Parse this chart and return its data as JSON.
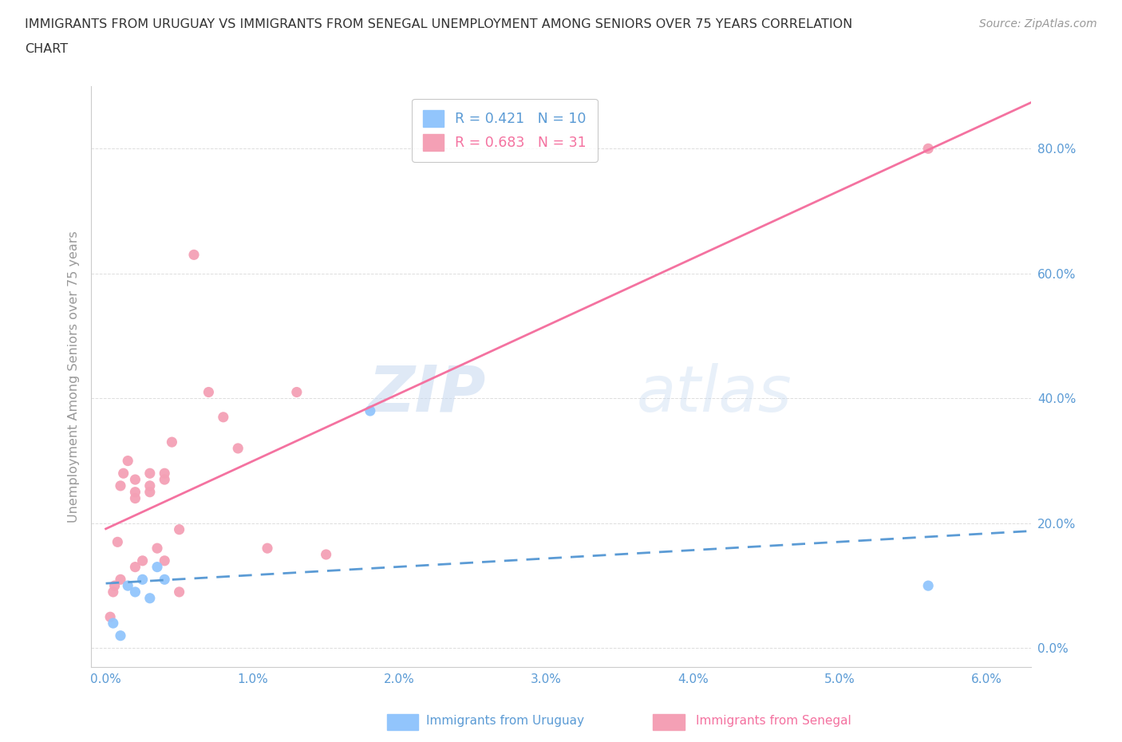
{
  "title_line1": "IMMIGRANTS FROM URUGUAY VS IMMIGRANTS FROM SENEGAL UNEMPLOYMENT AMONG SENIORS OVER 75 YEARS CORRELATION",
  "title_line2": "CHART",
  "source": "Source: ZipAtlas.com",
  "ylabel_label": "Unemployment Among Seniors over 75 years",
  "x_ticks": [
    0.0,
    0.01,
    0.02,
    0.03,
    0.04,
    0.05,
    0.06
  ],
  "x_tick_labels": [
    "0.0%",
    "1.0%",
    "2.0%",
    "3.0%",
    "4.0%",
    "5.0%",
    "6.0%"
  ],
  "y_ticks": [
    0.0,
    0.2,
    0.4,
    0.6,
    0.8
  ],
  "y_tick_labels": [
    "0.0%",
    "20.0%",
    "40.0%",
    "60.0%",
    "80.0%"
  ],
  "ylim": [
    -0.03,
    0.9
  ],
  "xlim": [
    -0.001,
    0.063
  ],
  "uruguay_color": "#92C5FC",
  "senegal_color": "#F4A0B5",
  "uruguay_line_color": "#5B9BD5",
  "senegal_line_color": "#F472A0",
  "legend_label1": "R = 0.421   N = 10",
  "legend_label2": "R = 0.683   N = 31",
  "watermark_zip": "ZIP",
  "watermark_atlas": "atlas",
  "uruguay_x": [
    0.0005,
    0.001,
    0.0015,
    0.002,
    0.0025,
    0.003,
    0.0035,
    0.004,
    0.018,
    0.056
  ],
  "uruguay_y": [
    0.04,
    0.02,
    0.1,
    0.09,
    0.11,
    0.08,
    0.13,
    0.11,
    0.38,
    0.1
  ],
  "senegal_x": [
    0.0003,
    0.0005,
    0.0006,
    0.0008,
    0.001,
    0.001,
    0.0012,
    0.0015,
    0.002,
    0.002,
    0.002,
    0.002,
    0.0025,
    0.003,
    0.003,
    0.003,
    0.0035,
    0.004,
    0.004,
    0.004,
    0.0045,
    0.005,
    0.005,
    0.006,
    0.007,
    0.008,
    0.009,
    0.011,
    0.013,
    0.015,
    0.056
  ],
  "senegal_y": [
    0.05,
    0.09,
    0.1,
    0.17,
    0.11,
    0.26,
    0.28,
    0.3,
    0.13,
    0.24,
    0.25,
    0.27,
    0.14,
    0.25,
    0.28,
    0.26,
    0.16,
    0.14,
    0.27,
    0.28,
    0.33,
    0.09,
    0.19,
    0.63,
    0.41,
    0.37,
    0.32,
    0.16,
    0.41,
    0.15,
    0.8
  ],
  "background_color": "#FFFFFF",
  "grid_color": "#DDDDDD",
  "tick_color": "#5B9BD5",
  "title_color": "#333333",
  "ylabel_color": "#999999"
}
